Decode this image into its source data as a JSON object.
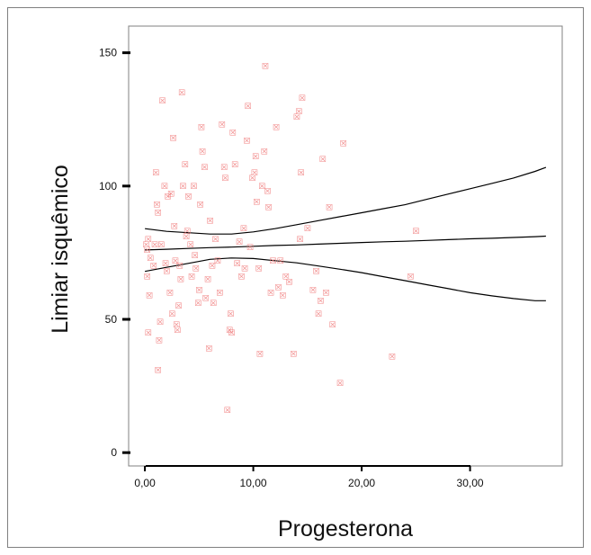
{
  "chart_data": {
    "type": "scatter",
    "xlabel": "Progesterona",
    "ylabel": "Limiar isquêmico",
    "xlim": [
      -1.5,
      38.5
    ],
    "ylim": [
      -5,
      160
    ],
    "x_ticks": [
      0,
      10,
      20,
      30
    ],
    "x_tick_labels": [
      "0,00",
      "10,00",
      "20,00",
      "30,00"
    ],
    "y_ticks": [
      0,
      50,
      100,
      150
    ],
    "y_tick_labels": [
      "0",
      "50",
      "100",
      "150"
    ],
    "grid": false,
    "legend": "none",
    "marker_symbol": "☒",
    "marker_color": "#f08080",
    "line_color": "#000000",
    "points": [
      [
        0.1,
        78
      ],
      [
        0.2,
        76
      ],
      [
        0.3,
        80
      ],
      [
        0.2,
        66
      ],
      [
        0.4,
        59
      ],
      [
        0.3,
        45
      ],
      [
        0.5,
        73
      ],
      [
        0.8,
        70
      ],
      [
        0.9,
        78
      ],
      [
        1.0,
        105
      ],
      [
        1.1,
        93
      ],
      [
        1.2,
        90
      ],
      [
        1.3,
        42
      ],
      [
        1.2,
        31
      ],
      [
        1.4,
        49
      ],
      [
        1.5,
        78
      ],
      [
        1.6,
        132
      ],
      [
        1.8,
        100
      ],
      [
        1.9,
        71
      ],
      [
        2.0,
        68
      ],
      [
        2.1,
        96
      ],
      [
        2.3,
        60
      ],
      [
        2.4,
        97
      ],
      [
        2.5,
        52
      ],
      [
        2.6,
        118
      ],
      [
        2.7,
        85
      ],
      [
        2.8,
        72
      ],
      [
        2.9,
        48
      ],
      [
        3.0,
        46
      ],
      [
        3.1,
        55
      ],
      [
        3.2,
        70
      ],
      [
        3.3,
        65
      ],
      [
        3.4,
        135
      ],
      [
        3.5,
        100
      ],
      [
        3.7,
        108
      ],
      [
        3.8,
        81
      ],
      [
        3.9,
        83
      ],
      [
        4.0,
        96
      ],
      [
        4.2,
        78
      ],
      [
        4.3,
        66
      ],
      [
        4.5,
        100
      ],
      [
        4.6,
        74
      ],
      [
        4.7,
        69
      ],
      [
        4.9,
        56
      ],
      [
        5.0,
        61
      ],
      [
        5.1,
        93
      ],
      [
        5.2,
        122
      ],
      [
        5.3,
        113
      ],
      [
        5.5,
        107
      ],
      [
        5.6,
        58
      ],
      [
        5.8,
        65
      ],
      [
        5.9,
        39
      ],
      [
        6.0,
        87
      ],
      [
        6.2,
        70
      ],
      [
        6.3,
        56
      ],
      [
        6.5,
        80
      ],
      [
        6.7,
        72
      ],
      [
        6.9,
        60
      ],
      [
        7.1,
        123
      ],
      [
        7.3,
        107
      ],
      [
        7.4,
        103
      ],
      [
        7.6,
        16
      ],
      [
        7.8,
        46
      ],
      [
        7.9,
        52
      ],
      [
        8.0,
        45
      ],
      [
        8.1,
        120
      ],
      [
        8.3,
        108
      ],
      [
        8.5,
        71
      ],
      [
        8.7,
        79
      ],
      [
        8.9,
        66
      ],
      [
        9.1,
        84
      ],
      [
        9.2,
        69
      ],
      [
        9.4,
        117
      ],
      [
        9.5,
        130
      ],
      [
        9.7,
        77
      ],
      [
        9.9,
        103
      ],
      [
        10.1,
        105
      ],
      [
        10.2,
        111
      ],
      [
        10.3,
        94
      ],
      [
        10.5,
        69
      ],
      [
        10.6,
        37
      ],
      [
        10.8,
        100
      ],
      [
        11.0,
        113
      ],
      [
        11.1,
        145
      ],
      [
        11.3,
        98
      ],
      [
        11.4,
        92
      ],
      [
        11.6,
        60
      ],
      [
        11.8,
        72
      ],
      [
        12.1,
        122
      ],
      [
        12.3,
        62
      ],
      [
        12.5,
        72
      ],
      [
        12.7,
        59
      ],
      [
        13.0,
        66
      ],
      [
        13.3,
        64
      ],
      [
        13.7,
        37
      ],
      [
        14.0,
        126
      ],
      [
        14.2,
        128
      ],
      [
        14.3,
        80
      ],
      [
        14.5,
        133
      ],
      [
        14.4,
        105
      ],
      [
        15.0,
        84
      ],
      [
        15.5,
        61
      ],
      [
        15.8,
        68
      ],
      [
        16.0,
        52
      ],
      [
        16.2,
        57
      ],
      [
        16.4,
        110
      ],
      [
        16.7,
        60
      ],
      [
        17.0,
        92
      ],
      [
        17.3,
        48
      ],
      [
        18.0,
        26
      ],
      [
        18.3,
        116
      ],
      [
        22.8,
        36
      ],
      [
        24.5,
        66
      ],
      [
        25.0,
        83
      ]
    ],
    "fit_lines": [
      {
        "x": [
          0,
          2,
          4,
          6,
          8,
          10,
          12,
          14,
          16,
          18,
          20,
          22,
          24,
          26,
          28,
          30,
          32,
          34,
          36,
          37
        ],
        "y": [
          76,
          76.3,
          76.6,
          76.9,
          77.1,
          77.4,
          77.7,
          77.9,
          78.2,
          78.5,
          78.8,
          79.1,
          79.3,
          79.6,
          79.9,
          80.2,
          80.4,
          80.7,
          81,
          81.2
        ]
      },
      {
        "x": [
          0,
          2,
          4,
          6,
          8,
          10,
          12,
          14,
          16,
          18,
          20,
          22,
          24,
          26,
          28,
          30,
          32,
          34,
          36,
          37
        ],
        "y": [
          84,
          83,
          82.5,
          82,
          82,
          82.8,
          84,
          85.5,
          87,
          88.5,
          90,
          91.5,
          93,
          95,
          97,
          99,
          101,
          103,
          105.5,
          107
        ]
      },
      {
        "x": [
          0,
          2,
          4,
          6,
          8,
          10,
          12,
          14,
          16,
          18,
          20,
          22,
          24,
          26,
          28,
          30,
          32,
          34,
          36,
          37
        ],
        "y": [
          68,
          69.5,
          71,
          72.5,
          73,
          72.8,
          72,
          71.2,
          70,
          68.8,
          67.5,
          66,
          64.5,
          63,
          61.5,
          60,
          58.8,
          57.8,
          57,
          57
        ]
      }
    ]
  }
}
